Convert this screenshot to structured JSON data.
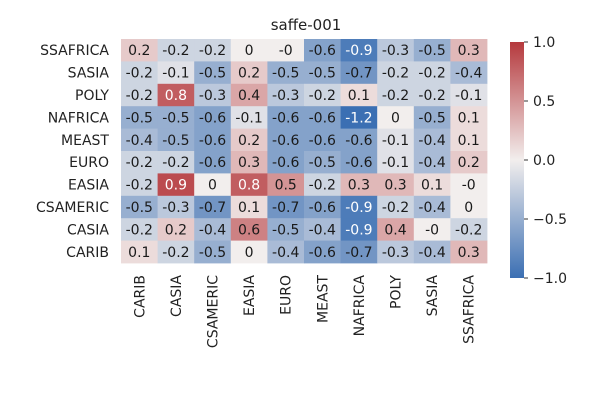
{
  "chart_data": {
    "type": "heatmap",
    "title": "saffe-001",
    "x_labels": [
      "CARIB",
      "CASIA",
      "CSAMERIC",
      "EASIA",
      "EURO",
      "MEAST",
      "NAFRICA",
      "POLY",
      "SASIA",
      "SSAFRICA"
    ],
    "y_labels": [
      "SSAFRICA",
      "SASIA",
      "POLY",
      "NAFRICA",
      "MEAST",
      "EURO",
      "EASIA",
      "CSAMERIC",
      "CASIA",
      "CARIB"
    ],
    "values": [
      [
        "0.2",
        "-0.2",
        "-0.2",
        "0",
        "-0",
        "-0.6",
        "-0.9",
        "-0.3",
        "-0.5",
        "0.3"
      ],
      [
        "-0.2",
        "-0.1",
        "-0.5",
        "0.2",
        "-0.5",
        "-0.5",
        "-0.7",
        "-0.2",
        "-0.2",
        "-0.4"
      ],
      [
        "-0.2",
        "0.8",
        "-0.3",
        "0.4",
        "-0.3",
        "-0.2",
        "0.1",
        "-0.2",
        "-0.2",
        "-0.1"
      ],
      [
        "-0.5",
        "-0.5",
        "-0.6",
        "-0.1",
        "-0.6",
        "-0.6",
        "-1.2",
        "0",
        "-0.5",
        "0.1"
      ],
      [
        "-0.4",
        "-0.5",
        "-0.6",
        "0.2",
        "-0.6",
        "-0.6",
        "-0.6",
        "-0.1",
        "-0.4",
        "0.1"
      ],
      [
        "-0.2",
        "-0.2",
        "-0.6",
        "0.3",
        "-0.6",
        "-0.5",
        "-0.6",
        "-0.1",
        "-0.4",
        "0.2"
      ],
      [
        "-0.2",
        "0.9",
        "0",
        "0.8",
        "0.5",
        "-0.2",
        "0.3",
        "0.3",
        "0.1",
        "-0"
      ],
      [
        "-0.5",
        "-0.3",
        "-0.7",
        "0.1",
        "-0.7",
        "-0.6",
        "-0.9",
        "-0.2",
        "-0.4",
        "0"
      ],
      [
        "-0.2",
        "0.2",
        "-0.4",
        "0.6",
        "-0.5",
        "-0.4",
        "-0.9",
        "0.4",
        "-0",
        "-0.2"
      ],
      [
        "0.1",
        "-0.2",
        "-0.5",
        "0",
        "-0.4",
        "-0.6",
        "-0.7",
        "-0.3",
        "-0.4",
        "0.3"
      ]
    ],
    "colorbar": {
      "vmin": -1.0,
      "vmax": 1.0,
      "tick_labels": [
        "1.0",
        "0.5",
        "0.0",
        "−0.5",
        "−1.0"
      ],
      "colormap": [
        "#3b6fb3",
        "#f2eeed",
        "#b5393d"
      ]
    },
    "grid": false
  }
}
